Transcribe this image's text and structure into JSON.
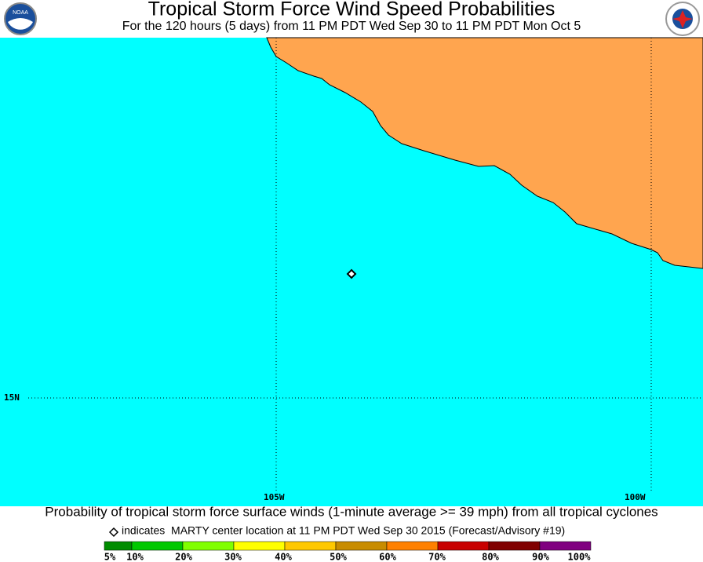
{
  "header": {
    "title": "Tropical Storm Force Wind Speed Probabilities",
    "subtitle": "For the 120 hours (5 days) from 11 PM PDT Wed Sep 30 to 11 PM PDT Mon Oct 5"
  },
  "map": {
    "grid_labels": [
      "15N",
      "105W",
      "100W"
    ]
  },
  "footer": {
    "caption": "Probability of tropical storm force surface winds (1-minute average >= 39 mph) from all tropical cyclones",
    "legend_note": "indicates  MARTY center location at 11 PM PDT Wed Sep 30 2015 (Forecast/Advisory #19)",
    "scale_labels": [
      "5%",
      "10%",
      "20%",
      "30%",
      "40%",
      "50%",
      "60%",
      "70%",
      "80%",
      "90%",
      "100%"
    ]
  }
}
